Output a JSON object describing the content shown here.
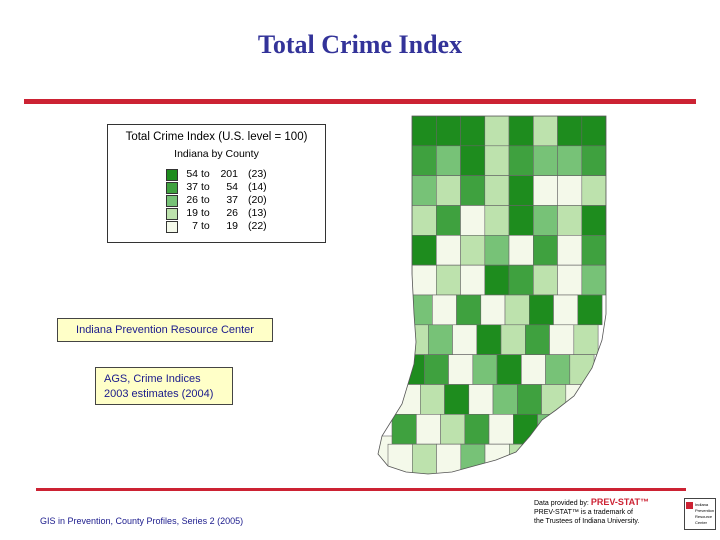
{
  "slide": {
    "title": "Total Crime Index"
  },
  "legend": {
    "title": "Total Crime Index (U.S. level = 100)",
    "subtitle": "Indiana by County",
    "classes": [
      {
        "low": "54",
        "to": "to",
        "high": "201",
        "count": "(23)",
        "color": "#1e8c1e"
      },
      {
        "low": "37",
        "to": "to",
        "high": "54",
        "count": "(14)",
        "color": "#3fa13f"
      },
      {
        "low": "26",
        "to": "to",
        "high": "37",
        "count": "(20)",
        "color": "#77c277"
      },
      {
        "low": "19",
        "to": "to",
        "high": "26",
        "count": "(13)",
        "color": "#bde2ad"
      },
      {
        "low": "7",
        "to": "to",
        "high": "19",
        "count": "(22)",
        "color": "#f4f9ea"
      }
    ]
  },
  "labels": {
    "organization": "Indiana Prevention Resource Center",
    "source_line1": "AGS, Crime Indices",
    "source_line2": "2003 estimates (2004)"
  },
  "footer": {
    "text": "GIS in Prevention, County Profiles, Series 2 (2005)"
  },
  "credit": {
    "provided_by": "Data provided by:",
    "brand": "PREV-STAT™",
    "trademark_line1": "PREV-STAT™ is a trademark of",
    "trademark_line2": "the Trustees of Indiana University."
  },
  "logo": {
    "line1": "Indiana",
    "line2": "Prevention",
    "line3": "Resource",
    "line4": "Center"
  },
  "map": {
    "county_classes": [
      [
        0,
        0,
        0,
        3,
        0,
        3,
        0,
        0
      ],
      [
        1,
        2,
        0,
        3,
        1,
        2,
        2,
        1
      ],
      [
        2,
        3,
        1,
        3,
        0,
        4,
        4,
        3
      ],
      [
        3,
        1,
        4,
        3,
        0,
        2,
        3,
        0
      ],
      [
        0,
        4,
        3,
        2,
        4,
        1,
        4,
        1
      ],
      [
        4,
        3,
        4,
        0,
        1,
        3,
        4,
        2
      ],
      [
        2,
        4,
        1,
        4,
        3,
        0,
        4,
        0
      ],
      [
        3,
        2,
        4,
        0,
        3,
        1,
        4,
        3
      ],
      [
        0,
        1,
        4,
        2,
        0,
        4,
        2,
        3
      ],
      [
        4,
        3,
        0,
        4,
        2,
        1,
        3,
        4
      ],
      [
        1,
        4,
        3,
        1,
        4,
        0,
        2,
        4
      ],
      [
        4,
        3,
        4,
        2,
        4,
        3,
        4,
        0
      ]
    ]
  }
}
